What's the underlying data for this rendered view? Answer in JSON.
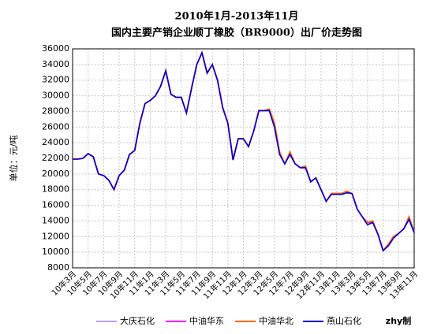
{
  "chart_data": {
    "type": "line",
    "title": "2010年1月-2013年11月",
    "subtitle": "国内主要产销企业顺丁橡胶（BR9000）出厂价走势图",
    "y_label": "单位：元/吨",
    "note": "zhy制",
    "categories": [
      "10年3月",
      null,
      null,
      "10年5月",
      null,
      null,
      "10年7月",
      null,
      null,
      "10年9月",
      null,
      null,
      "10年11月",
      null,
      null,
      "11年1月",
      null,
      null,
      "11年3月",
      null,
      null,
      "11年5月",
      null,
      null,
      "11年7月",
      null,
      null,
      "11年9月",
      null,
      null,
      "11年11月",
      null,
      null,
      "12年1月",
      null,
      null,
      "12年3月",
      null,
      null,
      "12年5月",
      null,
      null,
      "12年7月",
      null,
      null,
      "12年9月",
      null,
      null,
      "12年11月",
      null,
      null,
      "13年1月",
      null,
      null,
      "13年3月",
      null,
      null,
      "13年5月",
      null,
      null,
      "13年7月",
      null,
      null,
      "13年9月",
      null,
      null,
      "13年11月"
    ],
    "series": [
      {
        "name": "大庆石化",
        "color": "#c39bff",
        "values": [
          21900,
          21900,
          22000,
          22600,
          22200,
          20000,
          19800,
          19200,
          18000,
          19800,
          20500,
          22500,
          23000,
          26500,
          29000,
          29400,
          30000,
          31200,
          33200,
          30200,
          29800,
          29800,
          27800,
          31000,
          34000,
          35500,
          32900,
          34000,
          32000,
          28500,
          26500,
          21800,
          24500,
          24500,
          23500,
          25500,
          28100,
          28100,
          28100,
          26000,
          22500,
          21300,
          22500,
          21300,
          20800,
          20800,
          19000,
          19500,
          18000,
          16500,
          17400,
          17400,
          17400,
          17600,
          17500,
          15500,
          14500,
          13500,
          13800,
          12300,
          10200,
          10800,
          11800,
          12400,
          13000,
          14200,
          12500
        ]
      },
      {
        "name": "中油华东",
        "color": "#ff00ff",
        "values": [
          21900,
          21900,
          22000,
          22600,
          22200,
          20000,
          19800,
          19200,
          18000,
          19800,
          20500,
          22500,
          23000,
          26500,
          29000,
          29400,
          30000,
          31200,
          33200,
          30200,
          29800,
          29800,
          27800,
          31000,
          34000,
          35500,
          32900,
          34000,
          32000,
          28500,
          26500,
          21800,
          24500,
          24500,
          23500,
          25500,
          28100,
          28100,
          28300,
          26500,
          22800,
          21300,
          22800,
          21300,
          20800,
          21000,
          19000,
          19500,
          18000,
          16500,
          17500,
          17500,
          17500,
          17800,
          17500,
          15500,
          14500,
          13800,
          13800,
          12300,
          10200,
          11000,
          12000,
          12400,
          13000,
          14500,
          12500
        ]
      },
      {
        "name": "中油华北",
        "color": "#ff6600",
        "values": [
          21900,
          21900,
          22000,
          22600,
          22200,
          20000,
          19800,
          19200,
          18000,
          19800,
          20500,
          22500,
          23000,
          26500,
          29000,
          29400,
          30000,
          31200,
          33200,
          30200,
          29800,
          29800,
          27800,
          31000,
          34000,
          35500,
          32900,
          34000,
          32000,
          28500,
          26500,
          21800,
          24500,
          24500,
          23500,
          25500,
          28100,
          28100,
          28300,
          26500,
          22800,
          21300,
          22800,
          21300,
          20800,
          21000,
          19000,
          19500,
          18000,
          16500,
          17500,
          17500,
          17500,
          17800,
          17500,
          15500,
          14500,
          13800,
          14000,
          12300,
          10200,
          11000,
          12000,
          12400,
          13000,
          14500,
          12500
        ]
      },
      {
        "name": "燕山石化",
        "color": "#0000cc",
        "values": [
          21900,
          21900,
          22000,
          22600,
          22200,
          20000,
          19800,
          19200,
          18000,
          19800,
          20500,
          22500,
          23000,
          26500,
          29000,
          29400,
          30000,
          31200,
          33200,
          30200,
          29800,
          29800,
          27800,
          31000,
          34000,
          35500,
          32900,
          34000,
          32000,
          28500,
          26500,
          21800,
          24500,
          24500,
          23500,
          25500,
          28100,
          28100,
          28100,
          26000,
          22500,
          21300,
          22500,
          21300,
          20800,
          20800,
          19000,
          19500,
          18000,
          16500,
          17400,
          17400,
          17400,
          17600,
          17500,
          15500,
          14500,
          13500,
          13800,
          12300,
          10200,
          10800,
          11800,
          12400,
          13000,
          14200,
          12500
        ]
      }
    ],
    "ylim": [
      8000,
      36000
    ],
    "yticks": [
      8000,
      10000,
      12000,
      14000,
      16000,
      18000,
      20000,
      22000,
      24000,
      26000,
      28000,
      30000,
      32000,
      34000,
      36000
    ],
    "grid": true,
    "legend": "bottom"
  }
}
